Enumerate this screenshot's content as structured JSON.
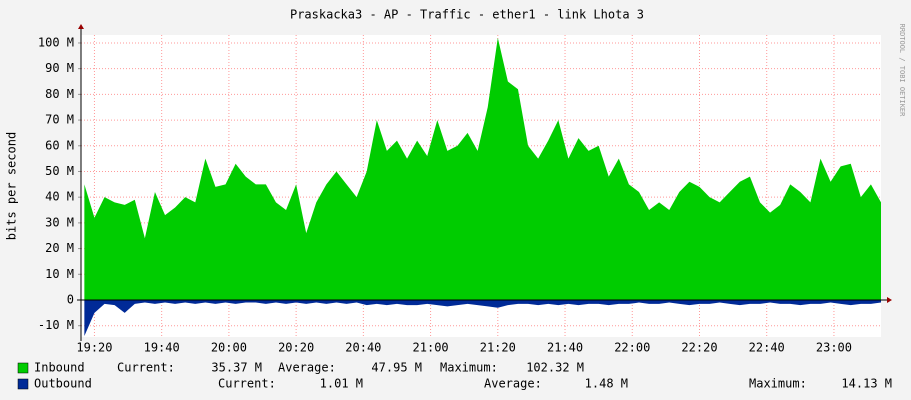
{
  "chart_data": {
    "type": "area",
    "title": "Praskacka3 - AP - Traffic - ether1 - link Lhota 3",
    "y_label": "bits per second",
    "watermark": "RRDTOOL / TOBI OETIKER",
    "grid": true,
    "ylim": [
      -14.4,
      103.1
    ],
    "yticks": [
      {
        "value": -10,
        "label": "-10 M"
      },
      0,
      {
        "value": 10,
        "label": "10 M"
      },
      {
        "value": 20,
        "label": "20 M"
      },
      {
        "value": 30,
        "label": "30 M"
      },
      {
        "value": 40,
        "label": "40 M"
      },
      {
        "value": 50,
        "label": "50 M"
      },
      {
        "value": 60,
        "label": "60 M"
      },
      {
        "value": 70,
        "label": "70 M"
      },
      {
        "value": 80,
        "label": "80 M"
      },
      {
        "value": 90,
        "label": "90 M"
      },
      {
        "value": 100,
        "label": "100 M"
      }
    ],
    "xlim": [
      "19:16",
      "23:14"
    ],
    "xticks": [
      "19:20",
      "19:40",
      "20:00",
      "20:20",
      "20:40",
      "21:00",
      "21:20",
      "21:40",
      "22:00",
      "22:20",
      "22:40",
      "23:00"
    ],
    "x": [
      "19:17",
      "19:20",
      "19:23",
      "19:26",
      "19:29",
      "19:32",
      "19:35",
      "19:38",
      "19:41",
      "19:44",
      "19:47",
      "19:50",
      "19:53",
      "19:56",
      "19:59",
      "20:02",
      "20:05",
      "20:08",
      "20:11",
      "20:14",
      "20:17",
      "20:20",
      "20:23",
      "20:26",
      "20:29",
      "20:32",
      "20:35",
      "20:38",
      "20:41",
      "20:44",
      "20:47",
      "20:50",
      "20:53",
      "20:56",
      "20:59",
      "21:02",
      "21:05",
      "21:08",
      "21:11",
      "21:14",
      "21:17",
      "21:20",
      "21:23",
      "21:26",
      "21:29",
      "21:32",
      "21:35",
      "21:38",
      "21:41",
      "21:44",
      "21:47",
      "21:50",
      "21:53",
      "21:56",
      "21:59",
      "22:02",
      "22:05",
      "22:08",
      "22:11",
      "22:14",
      "22:17",
      "22:20",
      "22:23",
      "22:26",
      "22:29",
      "22:32",
      "22:35",
      "22:38",
      "22:41",
      "22:44",
      "22:47",
      "22:50",
      "22:53",
      "22:56",
      "22:59",
      "23:02",
      "23:05",
      "23:08",
      "23:11",
      "23:14"
    ],
    "series": [
      {
        "name": "Inbound",
        "color": "#00cc00",
        "values": [
          45,
          32,
          40,
          38,
          37,
          39,
          24,
          42,
          33,
          36,
          40,
          38,
          55,
          44,
          45,
          53,
          48,
          45,
          45,
          38,
          35,
          45,
          26,
          38,
          45,
          50,
          45,
          40,
          50,
          70,
          58,
          62,
          55,
          62,
          56,
          70,
          58,
          60,
          65,
          58,
          75,
          102,
          85,
          82,
          60,
          55,
          62,
          70,
          55,
          63,
          58,
          60,
          48,
          55,
          45,
          42,
          35,
          38,
          35,
          42,
          46,
          44,
          40,
          38,
          42,
          46,
          48,
          38,
          34,
          37,
          45,
          42,
          38,
          55,
          46,
          52,
          53,
          40,
          45,
          38
        ],
        "stats": [
          {
            "label": "Current:",
            "value": 35.37,
            "value_label": "35.37 M"
          },
          {
            "label": "Average:",
            "value": 47.95,
            "value_label": "47.95 M"
          },
          {
            "label": "Maximum:",
            "value": 102.32,
            "value_label": "102.32 M"
          }
        ]
      },
      {
        "name": "Outbound",
        "color": "#002a97",
        "values": [
          -14,
          -5,
          -1.5,
          -2,
          -5,
          -1.5,
          -1,
          -1.5,
          -1,
          -1.5,
          -1,
          -1.5,
          -1,
          -1.5,
          -1,
          -1.5,
          -1,
          -1,
          -1.5,
          -1,
          -1.5,
          -1,
          -1.5,
          -1,
          -1.5,
          -1,
          -1.5,
          -1,
          -2,
          -1.5,
          -2,
          -1.5,
          -2,
          -2,
          -1.5,
          -2,
          -2.5,
          -2,
          -1.5,
          -2,
          -2.5,
          -3,
          -2,
          -1.5,
          -1.5,
          -2,
          -1.5,
          -2,
          -1.5,
          -2,
          -1.5,
          -1.5,
          -2,
          -1.5,
          -1.5,
          -1,
          -1.5,
          -1.5,
          -1,
          -1.5,
          -2,
          -1.5,
          -1.5,
          -1,
          -1.5,
          -2,
          -1.5,
          -1.5,
          -1,
          -1.5,
          -1.5,
          -2,
          -1.5,
          -1.5,
          -1,
          -1.5,
          -2,
          -1.5,
          -1.5,
          -1
        ],
        "stats": [
          {
            "label": "Current:",
            "value": 1.01,
            "value_label": "1.01 M"
          },
          {
            "label": "Average:",
            "value": 1.48,
            "value_label": "1.48 M"
          },
          {
            "label": "Maximum:",
            "value": 14.13,
            "value_label": "14.13 M"
          }
        ]
      }
    ]
  }
}
